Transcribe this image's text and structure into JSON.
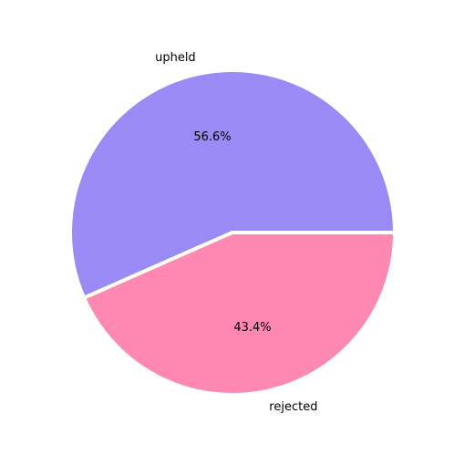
{
  "chart_data": {
    "type": "pie",
    "categories": [
      "upheld",
      "rejected"
    ],
    "values": [
      56.6,
      43.4
    ],
    "value_labels": [
      "56.6%",
      "43.4%"
    ],
    "colors": [
      "#998af5",
      "#ff88b2"
    ],
    "start_direction": "right, counter-clockwise",
    "legend": "none"
  }
}
